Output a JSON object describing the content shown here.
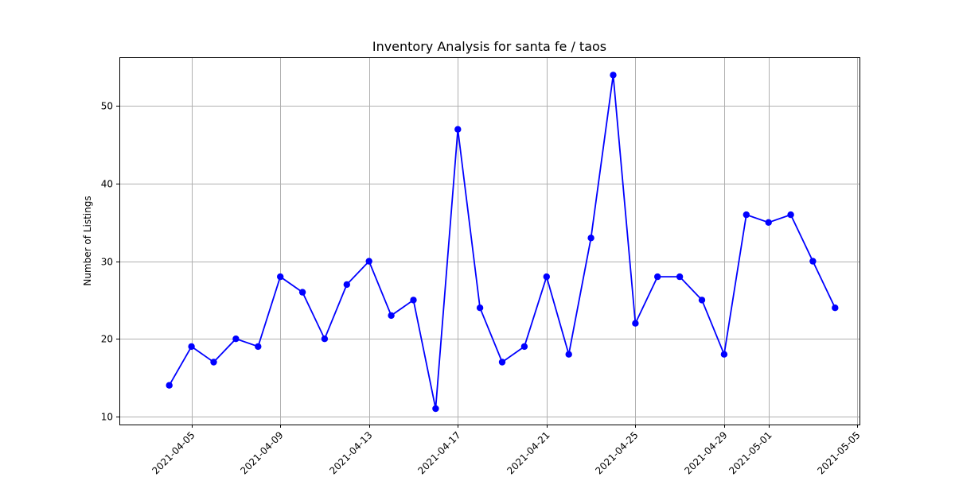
{
  "chart_data": {
    "type": "line",
    "title": "Inventory Analysis for santa fe / taos",
    "xlabel": "",
    "ylabel": "Number of Listings",
    "x": [
      "2021-04-04",
      "2021-04-05",
      "2021-04-06",
      "2021-04-07",
      "2021-04-08",
      "2021-04-09",
      "2021-04-10",
      "2021-04-11",
      "2021-04-12",
      "2021-04-13",
      "2021-04-14",
      "2021-04-15",
      "2021-04-16",
      "2021-04-17",
      "2021-04-18",
      "2021-04-19",
      "2021-04-20",
      "2021-04-21",
      "2021-04-22",
      "2021-04-23",
      "2021-04-24",
      "2021-04-25",
      "2021-04-26",
      "2021-04-27",
      "2021-04-28",
      "2021-04-29",
      "2021-04-30",
      "2021-05-01",
      "2021-05-02",
      "2021-05-03",
      "2021-05-04"
    ],
    "series": [
      {
        "values": [
          14,
          19,
          17,
          20,
          19,
          28,
          26,
          20,
          27,
          30,
          23,
          25,
          11,
          47,
          24,
          17,
          19,
          28,
          18,
          33,
          54,
          22,
          28,
          28,
          25,
          18,
          36,
          35,
          36,
          30,
          24
        ],
        "color": "#0000ff",
        "marker": "circle"
      }
    ],
    "xticks": [
      "2021-04-05",
      "2021-04-09",
      "2021-04-13",
      "2021-04-17",
      "2021-04-21",
      "2021-04-25",
      "2021-04-29",
      "2021-05-01",
      "2021-05-05"
    ],
    "yticks": [
      10,
      20,
      30,
      40,
      50
    ],
    "xlim": [
      "2021-04-02",
      "2021-05-05"
    ],
    "ylim": [
      9,
      56
    ],
    "grid": true,
    "xtick_rotation_deg": 45
  }
}
